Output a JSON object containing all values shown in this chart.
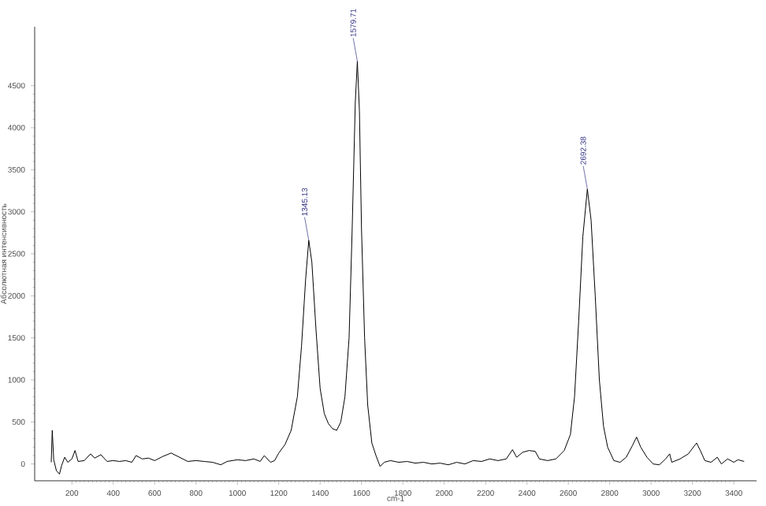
{
  "chart_data": {
    "type": "line",
    "xlabel": "cm-1",
    "ylabel": "Абсолютная интенсивность",
    "x": [
      100,
      105,
      112,
      125,
      140,
      150,
      165,
      180,
      200,
      215,
      230,
      260,
      290,
      310,
      340,
      370,
      400,
      430,
      460,
      490,
      510,
      540,
      570,
      600,
      640,
      680,
      720,
      760,
      800,
      840,
      880,
      920,
      950,
      1000,
      1040,
      1080,
      1110,
      1130,
      1160,
      1180,
      1200,
      1230,
      1260,
      1290,
      1310,
      1330,
      1345,
      1360,
      1380,
      1400,
      1420,
      1440,
      1460,
      1480,
      1500,
      1520,
      1540,
      1555,
      1570,
      1580,
      1590,
      1600,
      1615,
      1630,
      1650,
      1670,
      1690,
      1710,
      1740,
      1780,
      1820,
      1860,
      1900,
      1940,
      1980,
      2020,
      2060,
      2100,
      2140,
      2180,
      2220,
      2260,
      2300,
      2330,
      2350,
      2380,
      2410,
      2440,
      2460,
      2500,
      2540,
      2580,
      2610,
      2630,
      2650,
      2670,
      2692,
      2710,
      2730,
      2750,
      2770,
      2790,
      2820,
      2850,
      2880,
      2910,
      2930,
      2950,
      2980,
      3010,
      3040,
      3070,
      3090,
      3100,
      3140,
      3180,
      3220,
      3240,
      3260,
      3290,
      3320,
      3340,
      3370,
      3400,
      3420,
      3450
    ],
    "series": [
      {
        "color": "#000000",
        "values": [
          20,
          400,
          50,
          -80,
          -120,
          -20,
          80,
          20,
          60,
          160,
          30,
          40,
          120,
          70,
          110,
          30,
          40,
          30,
          40,
          20,
          100,
          60,
          70,
          40,
          90,
          130,
          80,
          30,
          40,
          30,
          20,
          -10,
          30,
          50,
          40,
          60,
          30,
          100,
          20,
          40,
          130,
          230,
          400,
          800,
          1400,
          2200,
          2660,
          2400,
          1600,
          900,
          600,
          480,
          420,
          400,
          500,
          800,
          1500,
          2800,
          4300,
          4790,
          4200,
          2800,
          1500,
          700,
          250,
          100,
          -30,
          20,
          40,
          20,
          30,
          10,
          20,
          0,
          10,
          -10,
          20,
          0,
          40,
          30,
          60,
          40,
          60,
          170,
          80,
          140,
          160,
          150,
          60,
          40,
          60,
          160,
          350,
          800,
          1700,
          2700,
          3270,
          2900,
          2000,
          1000,
          450,
          200,
          40,
          20,
          80,
          220,
          320,
          200,
          80,
          0,
          -10,
          60,
          120,
          20,
          60,
          120,
          250,
          150,
          40,
          20,
          80,
          0,
          60,
          20,
          50,
          30
        ]
      }
    ],
    "xlim": [
      20,
      3510
    ],
    "ylim": [
      -200,
      5200
    ],
    "xticks": [
      200,
      400,
      600,
      800,
      1000,
      1200,
      1400,
      1600,
      1800,
      2000,
      2200,
      2400,
      2600,
      2800,
      3000,
      3200,
      3400
    ],
    "yticks": [
      0,
      500,
      1000,
      1500,
      2000,
      2500,
      3000,
      3500,
      4000,
      4500
    ],
    "annotations": [
      {
        "text": "1345.13",
        "x": 1345,
        "y": 2660
      },
      {
        "text": "1579.71",
        "x": 1580,
        "y": 4790
      },
      {
        "text": "2692.38",
        "x": 2692,
        "y": 3270
      }
    ],
    "grid": false,
    "marker": "none",
    "line_style": "solid"
  }
}
